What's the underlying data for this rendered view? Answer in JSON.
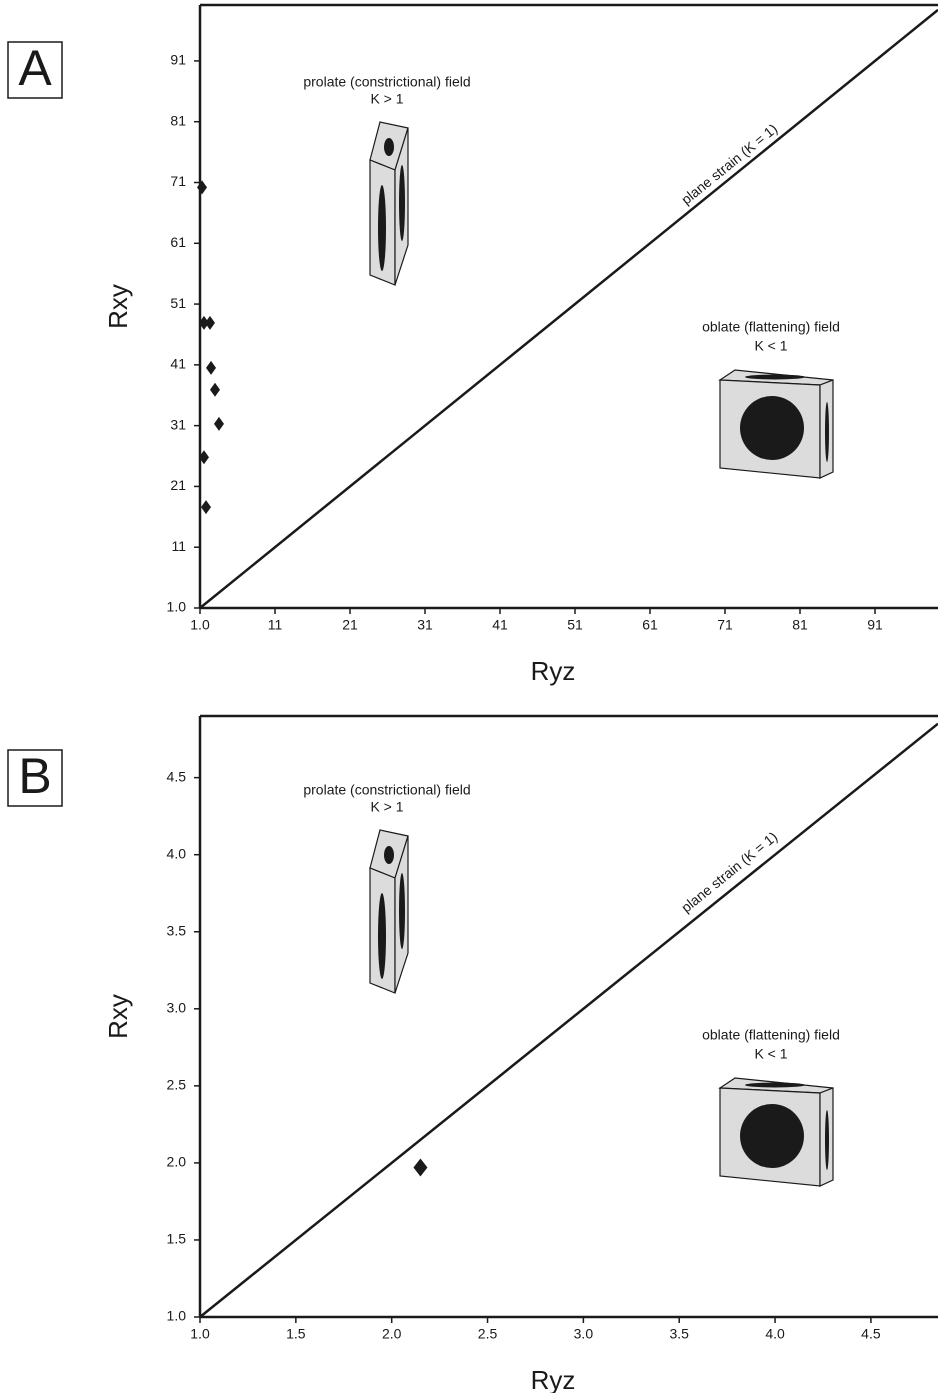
{
  "chart_data": [
    {
      "type": "scatter",
      "panel_label": "A",
      "x_label": "Ryz",
      "y_label": "Rxy",
      "annotations": [
        "prolate (constrictional) field",
        "K > 1",
        "oblate (flattening) field",
        "K < 1",
        "plane strain (K = 1)"
      ],
      "x": [
        1.27,
        1.53,
        2.33,
        2.47,
        3.0,
        3.53,
        1.53,
        1.8
      ],
      "values": [
        70.2,
        47.9,
        47.9,
        40.5,
        36.9,
        31.3,
        25.8,
        17.6
      ],
      "color": "#1a1a1a",
      "xlim": [
        1,
        99.4
      ],
      "ylim": [
        1,
        100.2
      ],
      "xticks": [
        {
          "value": 1,
          "label": "1.0"
        },
        11,
        21,
        31,
        41,
        51,
        61,
        71,
        81,
        91
      ],
      "yticks": [
        {
          "value": 1,
          "label": "1.0"
        },
        11,
        21,
        31,
        41,
        51,
        61,
        71,
        81,
        91
      ]
    },
    {
      "type": "scatter",
      "panel_label": "B",
      "x_label": "Ryz",
      "y_label": "Rxy",
      "annotations": [
        "prolate (constrictional) field",
        "K > 1",
        "oblate (flattening) field",
        "K < 1",
        "plane strain (K = 1)"
      ],
      "x": [
        2.15
      ],
      "values": [
        1.97
      ],
      "color": "#1a1a1a",
      "xlim": [
        1,
        4.85
      ],
      "ylim": [
        1,
        4.9
      ],
      "xticks": [
        {
          "value": 1,
          "label": "1.0"
        },
        1.5,
        {
          "value": 2,
          "label": "2.0"
        },
        2.5,
        {
          "value": 3,
          "label": "3.0"
        },
        3.5,
        {
          "value": 4,
          "label": "4.0"
        },
        4.5
      ],
      "yticks": [
        {
          "value": 1,
          "label": "1.0"
        },
        1.5,
        {
          "value": 2,
          "label": "2.0"
        },
        2.5,
        {
          "value": 3,
          "label": "3.0"
        },
        3.5,
        {
          "value": 4,
          "label": "4.0"
        },
        4.5
      ]
    }
  ]
}
